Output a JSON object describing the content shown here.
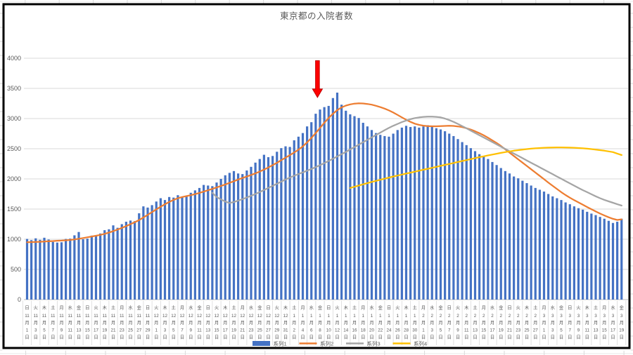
{
  "chart": {
    "title": "東京都の入院者数",
    "y_axis": {
      "ticks": [
        0,
        500,
        1000,
        1500,
        2000,
        2500,
        3000,
        3500,
        4000
      ]
    },
    "legend": [
      {
        "label": "系列1",
        "swatch": "bar",
        "color": "#4472C4"
      },
      {
        "label": "系列2",
        "swatch": "line",
        "color": "#ED7D31"
      },
      {
        "label": "系列3",
        "swatch": "line",
        "color": "#A5A5A5"
      },
      {
        "label": "系列4",
        "swatch": "line",
        "color": "#FFC000"
      }
    ],
    "annotation_arrow": {
      "shape": "down-arrow",
      "color": "#FF0000",
      "x_day": 68,
      "top_value": 3960,
      "tip_value": 3350
    }
  },
  "chart_data": {
    "type": "combo",
    "x_start": "11月1日",
    "x_end": "3月19日",
    "x_label_interval_days": 2,
    "ylim": [
      0,
      4000
    ],
    "grid": "horizontal",
    "legend_position": "bottom",
    "x_labels": [
      [
        "日",
        11,
        1
      ],
      [
        "火",
        11,
        3
      ],
      [
        "木",
        11,
        5
      ],
      [
        "土",
        11,
        7
      ],
      [
        "月",
        11,
        9
      ],
      [
        "水",
        11,
        11
      ],
      [
        "金",
        11,
        13
      ],
      [
        "日",
        11,
        15
      ],
      [
        "火",
        11,
        17
      ],
      [
        "木",
        11,
        19
      ],
      [
        "土",
        11,
        21
      ],
      [
        "月",
        11,
        23
      ],
      [
        "水",
        11,
        25
      ],
      [
        "金",
        11,
        27
      ],
      [
        "日",
        11,
        29
      ],
      [
        "火",
        12,
        1
      ],
      [
        "木",
        12,
        3
      ],
      [
        "土",
        12,
        5
      ],
      [
        "月",
        12,
        7
      ],
      [
        "水",
        12,
        9
      ],
      [
        "金",
        12,
        11
      ],
      [
        "日",
        12,
        13
      ],
      [
        "火",
        12,
        15
      ],
      [
        "木",
        12,
        17
      ],
      [
        "土",
        12,
        19
      ],
      [
        "月",
        12,
        21
      ],
      [
        "水",
        12,
        23
      ],
      [
        "金",
        12,
        25
      ],
      [
        "日",
        12,
        27
      ],
      [
        "火",
        12,
        29
      ],
      [
        "木",
        12,
        31
      ],
      [
        "土",
        1,
        2
      ],
      [
        "月",
        1,
        4
      ],
      [
        "水",
        1,
        6
      ],
      [
        "金",
        1,
        8
      ],
      [
        "日",
        1,
        10
      ],
      [
        "火",
        1,
        12
      ],
      [
        "木",
        1,
        14
      ],
      [
        "土",
        1,
        16
      ],
      [
        "月",
        1,
        18
      ],
      [
        "水",
        1,
        20
      ],
      [
        "金",
        1,
        22
      ],
      [
        "日",
        1,
        24
      ],
      [
        "火",
        1,
        26
      ],
      [
        "木",
        1,
        28
      ],
      [
        "土",
        1,
        30
      ],
      [
        "月",
        2,
        1
      ],
      [
        "水",
        2,
        3
      ],
      [
        "金",
        2,
        5
      ],
      [
        "日",
        2,
        7
      ],
      [
        "火",
        2,
        9
      ],
      [
        "木",
        2,
        11
      ],
      [
        "土",
        2,
        13
      ],
      [
        "月",
        2,
        15
      ],
      [
        "水",
        2,
        17
      ],
      [
        "金",
        2,
        19
      ],
      [
        "日",
        2,
        21
      ],
      [
        "火",
        2,
        23
      ],
      [
        "木",
        2,
        25
      ],
      [
        "土",
        2,
        27
      ],
      [
        "月",
        3,
        1
      ],
      [
        "水",
        3,
        3
      ],
      [
        "金",
        3,
        5
      ],
      [
        "日",
        3,
        7
      ],
      [
        "火",
        3,
        9
      ],
      [
        "木",
        3,
        11
      ],
      [
        "土",
        3,
        13
      ],
      [
        "月",
        3,
        15
      ],
      [
        "水",
        3,
        17
      ],
      [
        "金",
        3,
        19
      ]
    ],
    "series": [
      {
        "name": "系列1",
        "type": "bar",
        "color": "#4472C4",
        "start_day": 1,
        "values": [
          1005,
          985,
          1015,
          990,
          1025,
          995,
          955,
          945,
          950,
          1005,
          1010,
          1065,
          1120,
          1000,
          1010,
          1060,
          1055,
          1095,
          1150,
          1165,
          1230,
          1190,
          1250,
          1290,
          1310,
          1300,
          1430,
          1545,
          1525,
          1565,
          1625,
          1680,
          1650,
          1700,
          1690,
          1730,
          1700,
          1720,
          1770,
          1810,
          1850,
          1900,
          1890,
          1880,
          1940,
          2000,
          2060,
          2100,
          2130,
          2090,
          2080,
          2140,
          2200,
          2270,
          2330,
          2400,
          2360,
          2380,
          2450,
          2510,
          2540,
          2530,
          2640,
          2700,
          2760,
          2870,
          2940,
          3080,
          3150,
          3190,
          3210,
          3340,
          3430,
          3230,
          3130,
          3070,
          3040,
          3010,
          2930,
          2870,
          2810,
          2760,
          2730,
          2710,
          2700,
          2750,
          2810,
          2850,
          2880,
          2860,
          2870,
          2850,
          2870,
          2890,
          2860,
          2840,
          2820,
          2790,
          2750,
          2710,
          2660,
          2610,
          2560,
          2510,
          2460,
          2410,
          2370,
          2330,
          2280,
          2230,
          2180,
          2130,
          2090,
          2040,
          2010,
          1970,
          1930,
          1890,
          1850,
          1820,
          1790,
          1750,
          1710,
          1680,
          1650,
          1610,
          1580,
          1545,
          1515,
          1490,
          1455,
          1425,
          1400,
          1370,
          1340,
          1305,
          1270,
          1290,
          1340
        ]
      },
      {
        "name": "系列2",
        "type": "line",
        "color": "#ED7D31",
        "start_day": 1,
        "values": [
          950,
          952,
          955,
          958,
          962,
          966,
          970,
          975,
          978,
          982,
          988,
          996,
          1008,
          1020,
          1032,
          1045,
          1058,
          1072,
          1090,
          1110,
          1135,
          1160,
          1188,
          1218,
          1250,
          1282,
          1318,
          1360,
          1405,
          1450,
          1495,
          1540,
          1580,
          1618,
          1652,
          1680,
          1700,
          1715,
          1730,
          1748,
          1768,
          1790,
          1812,
          1835,
          1858,
          1882,
          1908,
          1935,
          1962,
          1990,
          2015,
          2040,
          2065,
          2092,
          2122,
          2155,
          2190,
          2228,
          2268,
          2310,
          2352,
          2394,
          2438,
          2485,
          2540,
          2605,
          2680,
          2760,
          2845,
          2930,
          3010,
          3080,
          3140,
          3185,
          3215,
          3235,
          3248,
          3252,
          3250,
          3242,
          3230,
          3212,
          3190,
          3165,
          3135,
          3100,
          3060,
          3020,
          2980,
          2945,
          2915,
          2895,
          2882,
          2875,
          2872,
          2872,
          2875,
          2878,
          2880,
          2878,
          2870,
          2858,
          2840,
          2818,
          2790,
          2758,
          2722,
          2682,
          2638,
          2595,
          2545,
          2490,
          2435,
          2380,
          2325,
          2270,
          2215,
          2160,
          2105,
          2050,
          1995,
          1940,
          1885,
          1832,
          1780,
          1732,
          1688,
          1648,
          1610,
          1572,
          1534,
          1496,
          1460,
          1426,
          1394,
          1364,
          1338,
          1320,
          1330
        ]
      },
      {
        "name": "系列3",
        "type": "line",
        "color": "#A5A5A5",
        "start_day": 44,
        "values": [
          1770,
          1700,
          1660,
          1625,
          1600,
          1618,
          1640,
          1665,
          1692,
          1720,
          1750,
          1782,
          1815,
          1850,
          1885,
          1920,
          1955,
          1990,
          2022,
          2052,
          2080,
          2108,
          2136,
          2165,
          2195,
          2228,
          2262,
          2298,
          2335,
          2372,
          2410,
          2448,
          2488,
          2528,
          2568,
          2608,
          2648,
          2688,
          2728,
          2768,
          2808,
          2845,
          2880,
          2912,
          2942,
          2968,
          2990,
          3008,
          3020,
          3028,
          3032,
          3032,
          3028,
          3020,
          3000,
          2975,
          2945,
          2912,
          2876,
          2838,
          2800,
          2762,
          2724,
          2686,
          2648,
          2610,
          2572,
          2534,
          2496,
          2458,
          2420,
          2382,
          2344,
          2306,
          2268,
          2230,
          2192,
          2154,
          2116,
          2078,
          2040,
          2002,
          1964,
          1926,
          1888,
          1850,
          1814,
          1780,
          1745,
          1712,
          1680,
          1652,
          1628,
          1605,
          1580,
          1558
        ]
      },
      {
        "name": "系列4",
        "type": "line",
        "color": "#FFC000",
        "start_day": 76,
        "values": [
          1850,
          1870,
          1890,
          1910,
          1930,
          1950,
          1968,
          1986,
          2004,
          2022,
          2040,
          2056,
          2072,
          2088,
          2104,
          2120,
          2136,
          2152,
          2168,
          2184,
          2200,
          2216,
          2232,
          2248,
          2264,
          2280,
          2296,
          2312,
          2328,
          2344,
          2360,
          2375,
          2390,
          2404,
          2418,
          2431,
          2444,
          2456,
          2467,
          2477,
          2486,
          2494,
          2501,
          2507,
          2512,
          2516,
          2519,
          2521,
          2522,
          2522,
          2521,
          2519,
          2516,
          2512,
          2507,
          2501,
          2494,
          2486,
          2477,
          2467,
          2456,
          2444,
          2420,
          2395
        ]
      }
    ]
  }
}
